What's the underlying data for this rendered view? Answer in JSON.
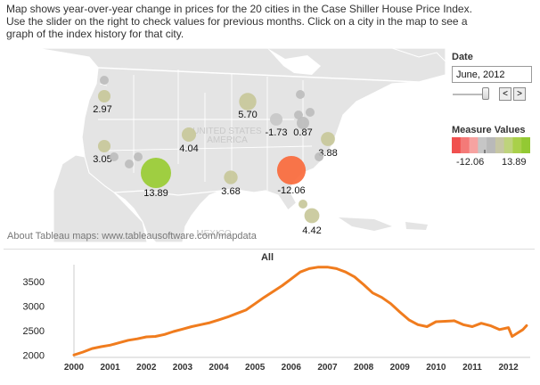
{
  "intro": {
    "line1": "Map shows year-over-year change in prices for the 20 cities in the Case Shiller House Price Index.",
    "line2": "Use the slider on the right to check values for previous months. Click on a city in the map to see a",
    "line3": "graph of the index history for that city."
  },
  "map": {
    "country_label": "UNITED STATES\nAMERICA",
    "mexico_label": "MEXICO",
    "attribution": "About Tableau maps: www.tableausoftware.com/mapdata",
    "colors": {
      "land": "#e6e6e6",
      "border": "#ffffff",
      "water": "#ffffff"
    },
    "cities": [
      {
        "id": "seattle",
        "label": "",
        "value": null,
        "color": "#bdbdbd"
      },
      {
        "id": "portland",
        "label": "2.97",
        "value": 2.97,
        "color": "#c8c89a"
      },
      {
        "id": "san-francisco",
        "label": "3.05",
        "value": 3.05,
        "color": "#c8c89a"
      },
      {
        "id": "los-angeles",
        "label": "",
        "value": null,
        "color": "#bdbdbd"
      },
      {
        "id": "san-diego",
        "label": "",
        "value": null,
        "color": "#bdbdbd"
      },
      {
        "id": "las-vegas",
        "label": "",
        "value": null,
        "color": "#bdbdbd"
      },
      {
        "id": "phoenix",
        "label": "13.89",
        "value": 13.89,
        "color": "#99cc33"
      },
      {
        "id": "denver",
        "label": "4.04",
        "value": 4.04,
        "color": "#c8c89a"
      },
      {
        "id": "dallas",
        "label": "3.68",
        "value": 3.68,
        "color": "#c8c89a"
      },
      {
        "id": "minneapolis",
        "label": "5.70",
        "value": 5.7,
        "color": "#c8c89a"
      },
      {
        "id": "chicago",
        "label": "-1.73",
        "value": -1.73,
        "color": "#c8c8c8"
      },
      {
        "id": "detroit",
        "label": "",
        "value": null,
        "color": "#bdbdbd"
      },
      {
        "id": "cleveland",
        "label": "0.87",
        "value": 0.87,
        "color": "#bdbdbd"
      },
      {
        "id": "boston",
        "label": "",
        "value": null,
        "color": "#bdbdbd"
      },
      {
        "id": "new-york",
        "label": "",
        "value": null,
        "color": "#bdbdbd"
      },
      {
        "id": "washington",
        "label": "3.88",
        "value": 3.88,
        "color": "#c8c89a"
      },
      {
        "id": "charlotte",
        "label": "",
        "value": null,
        "color": "#bdbdbd"
      },
      {
        "id": "atlanta",
        "label": "-12.06",
        "value": -12.06,
        "color": "#fa6a3c"
      },
      {
        "id": "tampa",
        "label": "",
        "value": null,
        "color": "#c8c89a"
      },
      {
        "id": "miami",
        "label": "4.42",
        "value": 4.42,
        "color": "#c8c89a"
      }
    ]
  },
  "controls": {
    "date_title": "Date",
    "date_value": "June, 2012",
    "prev_label": "<",
    "next_label": ">",
    "slider_position": 0.9,
    "legend_title": "Measure Values",
    "legend_min": "-12.06",
    "legend_max": "13.89",
    "legend_colors": [
      "#f0504f",
      "#f47a78",
      "#f6a3a1",
      "#c6c6c6",
      "#b9b9b9",
      "#c6c6a4",
      "#bed37c",
      "#a9d04a",
      "#93c933"
    ]
  },
  "chart": {
    "title": "All",
    "line_color": "#f07c1e"
  },
  "chart_data": {
    "type": "line",
    "title": "All",
    "xlabel": "",
    "ylabel": "",
    "x_ticks": [
      "2000",
      "2001",
      "2002",
      "2003",
      "2004",
      "2005",
      "2006",
      "2007",
      "2008",
      "2009",
      "2010",
      "2011",
      "2012"
    ],
    "y_ticks": [
      "2000",
      "2500",
      "3000",
      "3500"
    ],
    "xlim": [
      2000.0,
      2012.6
    ],
    "ylim": [
      1950,
      3850
    ],
    "grid": false,
    "series": [
      {
        "x": [
          2000.0,
          2000.25,
          2000.5,
          2000.75,
          2001.0,
          2001.25,
          2001.5,
          2001.75,
          2002.0,
          2002.25,
          2002.5,
          2002.75,
          2003.0,
          2003.25,
          2003.5,
          2003.75,
          2004.0,
          2004.25,
          2004.5,
          2004.75,
          2005.0,
          2005.25,
          2005.5,
          2005.75,
          2006.0,
          2006.25,
          2006.5,
          2006.75,
          2007.0,
          2007.25,
          2007.5,
          2007.75,
          2008.0,
          2008.25,
          2008.5,
          2008.75,
          2009.0,
          2009.25,
          2009.5,
          2009.75,
          2010.0,
          2010.25,
          2010.5,
          2010.75,
          2011.0,
          2011.25,
          2011.5,
          2011.75,
          2012.0,
          2012.1,
          2012.25,
          2012.4,
          2012.5
        ],
        "y": [
          2000,
          2060,
          2130,
          2170,
          2200,
          2250,
          2300,
          2330,
          2370,
          2380,
          2420,
          2480,
          2530,
          2580,
          2620,
          2660,
          2720,
          2780,
          2850,
          2920,
          3050,
          3180,
          3300,
          3420,
          3560,
          3700,
          3770,
          3800,
          3800,
          3770,
          3700,
          3600,
          3440,
          3270,
          3180,
          3050,
          2880,
          2720,
          2620,
          2580,
          2680,
          2690,
          2700,
          2620,
          2580,
          2650,
          2600,
          2520,
          2560,
          2380,
          2450,
          2520,
          2600
        ]
      }
    ]
  }
}
